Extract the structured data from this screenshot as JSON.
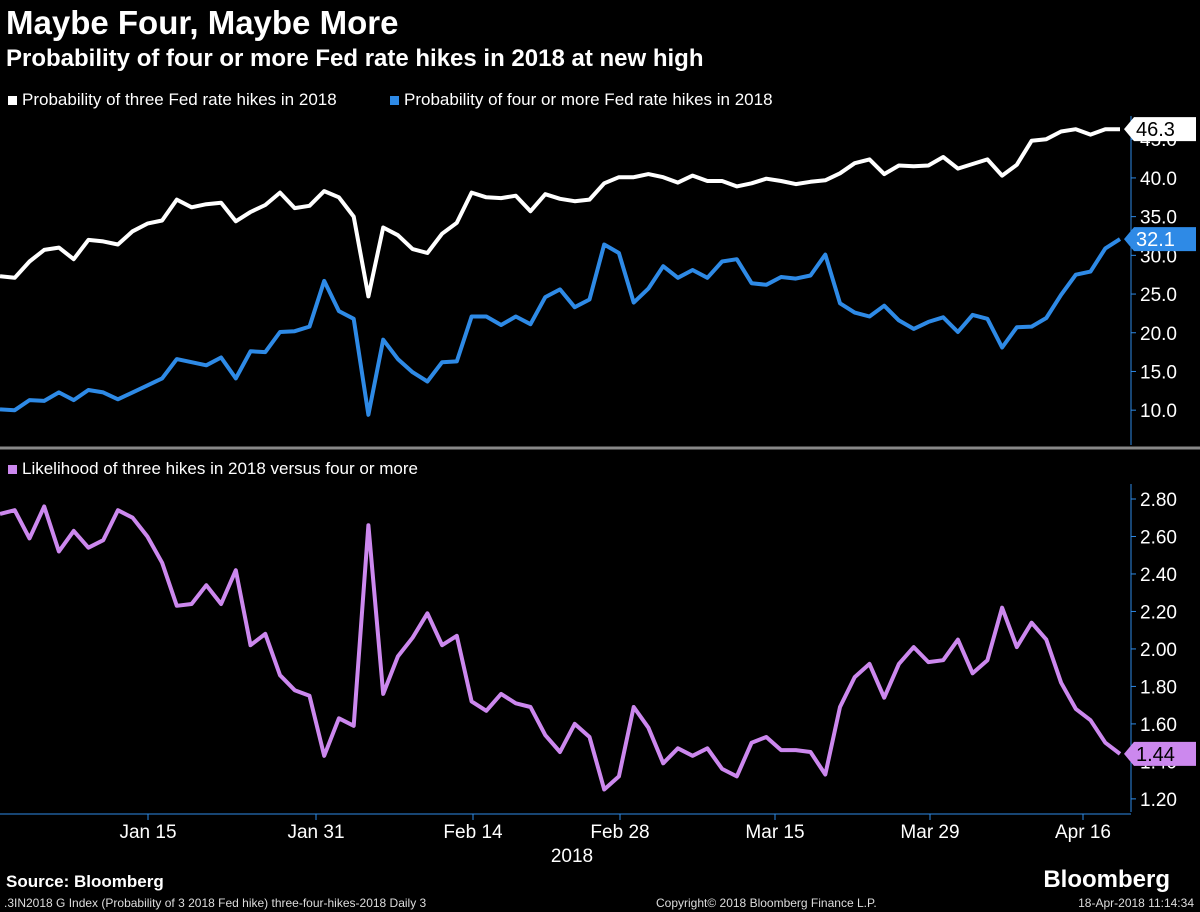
{
  "title": "Maybe Four, Maybe More",
  "subtitle": "Probability of four or more Fed rate hikes in 2018 at new high",
  "source": "Source: Bloomberg",
  "brand": "Bloomberg",
  "footer": {
    "left": ".3IN2018 G Index (Probability of 3 2018 Fed hike) three-four-hikes-2018  Daily 3",
    "center": "Copyright© 2018 Bloomberg Finance L.P.",
    "right": "18-Apr-2018 11:14:34"
  },
  "colors": {
    "three": "#ffffff",
    "four": "#2e8ae6",
    "ratio": "#cc88ee",
    "background": "#000000",
    "divider": "#888888"
  },
  "chart_data": [
    {
      "type": "line",
      "legend": [
        "Probability of three Fed rate hikes in 2018",
        "Probability of four or more Fed rate hikes in 2018"
      ],
      "x_tick_labels": [
        "Jan 15",
        "Jan 31",
        "Feb 14",
        "Feb 28",
        "Mar 15",
        "Mar 29",
        "Apr 16"
      ],
      "x_axis_year": "2018",
      "y_tick_labels": [
        "10.0",
        "15.0",
        "20.0",
        "25.0",
        "30.0",
        "35.0",
        "40.0",
        "45.0"
      ],
      "ylim": [
        5.5,
        48
      ],
      "last_value_labels": [
        "46.3",
        "32.1"
      ],
      "series": [
        {
          "name": "Probability of three Fed rate hikes in 2018",
          "values": [
            27.3,
            27.1,
            29.2,
            30.7,
            31.0,
            29.5,
            32.0,
            31.8,
            31.4,
            33.1,
            34.1,
            34.5,
            37.2,
            36.2,
            36.6,
            36.8,
            34.4,
            35.6,
            36.5,
            38.1,
            36.1,
            36.4,
            38.3,
            37.5,
            35.0,
            24.7,
            33.6,
            32.6,
            30.8,
            30.3,
            32.8,
            34.2,
            38.1,
            37.5,
            37.4,
            37.7,
            35.7,
            37.9,
            37.3,
            37.0,
            37.2,
            39.3,
            40.1,
            40.1,
            40.5,
            40.1,
            39.4,
            40.3,
            39.6,
            39.6,
            38.9,
            39.3,
            39.9,
            39.6,
            39.2,
            39.5,
            39.7,
            40.6,
            41.9,
            42.4,
            40.5,
            41.6,
            41.5,
            41.6,
            42.7,
            41.2,
            41.8,
            42.4,
            40.3,
            41.7,
            44.8,
            45.0,
            46.0,
            46.3,
            45.6,
            46.3,
            46.3
          ]
        },
        {
          "name": "Probability of four or more Fed rate hikes in 2018",
          "values": [
            10.1,
            10.0,
            11.3,
            11.2,
            12.3,
            11.3,
            12.6,
            12.3,
            11.4,
            12.3,
            13.2,
            14.1,
            16.6,
            16.2,
            15.8,
            16.8,
            14.1,
            17.6,
            17.5,
            20.1,
            20.2,
            20.8,
            26.7,
            22.8,
            21.8,
            9.4,
            19.1,
            16.6,
            14.9,
            13.7,
            16.2,
            16.3,
            22.1,
            22.1,
            21.0,
            22.1,
            21.1,
            24.6,
            25.6,
            23.3,
            24.3,
            31.4,
            30.3,
            23.9,
            25.7,
            28.6,
            27.1,
            28.1,
            27.1,
            29.2,
            29.5,
            26.4,
            26.2,
            27.2,
            27.0,
            27.4,
            30.1,
            23.8,
            22.6,
            22.1,
            23.5,
            21.6,
            20.5,
            21.4,
            22.0,
            20.1,
            22.3,
            21.8,
            18.1,
            20.7,
            20.8,
            21.9,
            24.9,
            27.5,
            27.9,
            30.9,
            32.1
          ]
        }
      ]
    },
    {
      "type": "line",
      "legend": [
        "Likelihood of three hikes in 2018 versus four or more"
      ],
      "y_tick_labels": [
        "1.20",
        "1.40",
        "1.60",
        "1.80",
        "2.00",
        "2.20",
        "2.40",
        "2.60",
        "2.80"
      ],
      "ylim": [
        1.13,
        2.88
      ],
      "last_value_labels": [
        "1.44"
      ],
      "series": [
        {
          "name": "Likelihood of three hikes in 2018 versus four or more",
          "values": [
            2.72,
            2.74,
            2.59,
            2.76,
            2.52,
            2.63,
            2.54,
            2.58,
            2.74,
            2.7,
            2.6,
            2.46,
            2.23,
            2.24,
            2.34,
            2.24,
            2.42,
            2.02,
            2.08,
            1.86,
            1.78,
            1.75,
            1.43,
            1.63,
            1.59,
            2.66,
            1.76,
            1.96,
            2.06,
            2.19,
            2.02,
            2.07,
            1.72,
            1.67,
            1.76,
            1.71,
            1.69,
            1.54,
            1.45,
            1.6,
            1.53,
            1.25,
            1.32,
            1.69,
            1.58,
            1.39,
            1.47,
            1.43,
            1.47,
            1.36,
            1.32,
            1.5,
            1.53,
            1.46,
            1.46,
            1.45,
            1.33,
            1.69,
            1.85,
            1.92,
            1.74,
            1.92,
            2.01,
            1.93,
            1.94,
            2.05,
            1.87,
            1.94,
            2.22,
            2.01,
            2.14,
            2.05,
            1.82,
            1.68,
            1.62,
            1.5,
            1.44
          ]
        }
      ]
    }
  ]
}
